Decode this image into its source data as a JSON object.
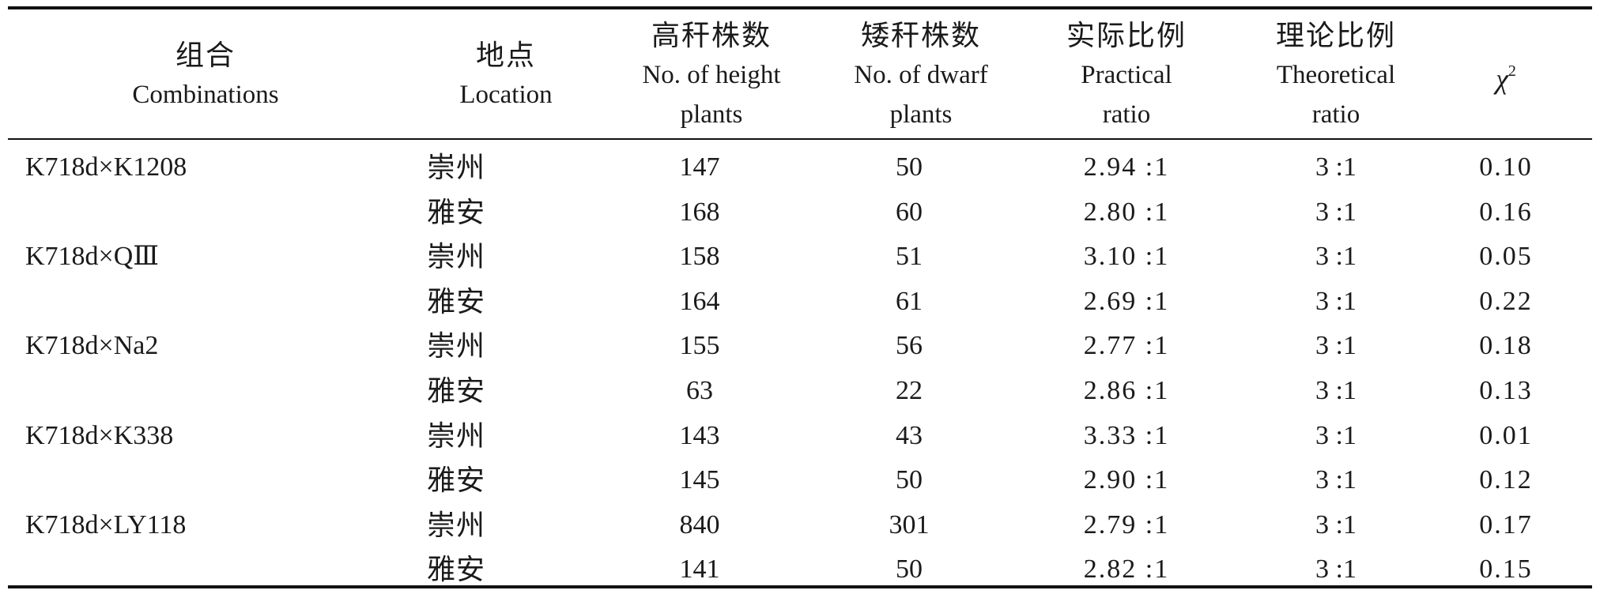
{
  "header": {
    "combination": {
      "zh": "组合",
      "en": "Combinations"
    },
    "location": {
      "zh": "地点",
      "en": "Location"
    },
    "height_plants": {
      "zh": "高秆株数",
      "en1": "No. of height",
      "en2": "plants"
    },
    "dwarf_plants": {
      "zh": "矮秆株数",
      "en1": "No. of dwarf",
      "en2": "plants"
    },
    "practical": {
      "zh": "实际比例",
      "en1": "Practical",
      "en2": "ratio"
    },
    "theoretical": {
      "zh": "理论比例",
      "en1": "Theoretical",
      "en2": "ratio"
    },
    "chi_symbol": "χ",
    "chi_sup": "2"
  },
  "rows": [
    {
      "combination": "K718d×K1208",
      "location": "崇州",
      "high": "147",
      "dwarf": "50",
      "practical": "2.94 :1",
      "theoretical": "3 :1",
      "chi": "0.10"
    },
    {
      "combination": "",
      "location": "雅安",
      "high": "168",
      "dwarf": "60",
      "practical": "2.80 :1",
      "theoretical": "3 :1",
      "chi": "0.16"
    },
    {
      "combination": "K718d×QⅢ",
      "location": "崇州",
      "high": "158",
      "dwarf": "51",
      "practical": "3.10 :1",
      "theoretical": "3 :1",
      "chi": "0.05"
    },
    {
      "combination": "",
      "location": "雅安",
      "high": "164",
      "dwarf": "61",
      "practical": "2.69 :1",
      "theoretical": "3 :1",
      "chi": "0.22"
    },
    {
      "combination": "K718d×Na2",
      "location": "崇州",
      "high": "155",
      "dwarf": "56",
      "practical": "2.77 :1",
      "theoretical": "3 :1",
      "chi": "0.18"
    },
    {
      "combination": "",
      "location": "雅安",
      "high": "63",
      "dwarf": "22",
      "practical": "2.86 :1",
      "theoretical": "3 :1",
      "chi": "0.13"
    },
    {
      "combination": "K718d×K338",
      "location": "崇州",
      "high": "143",
      "dwarf": "43",
      "practical": "3.33 :1",
      "theoretical": "3 :1",
      "chi": "0.01"
    },
    {
      "combination": "",
      "location": "雅安",
      "high": "145",
      "dwarf": "50",
      "practical": "2.90 :1",
      "theoretical": "3 :1",
      "chi": "0.12"
    },
    {
      "combination": "K718d×LY118",
      "location": "崇州",
      "high": "840",
      "dwarf": "301",
      "practical": "2.79 :1",
      "theoretical": "3 :1",
      "chi": "0.17"
    },
    {
      "combination": "",
      "location": "雅安",
      "high": "141",
      "dwarf": "50",
      "practical": "2.82 :1",
      "theoretical": "3 :1",
      "chi": "0.15"
    }
  ]
}
